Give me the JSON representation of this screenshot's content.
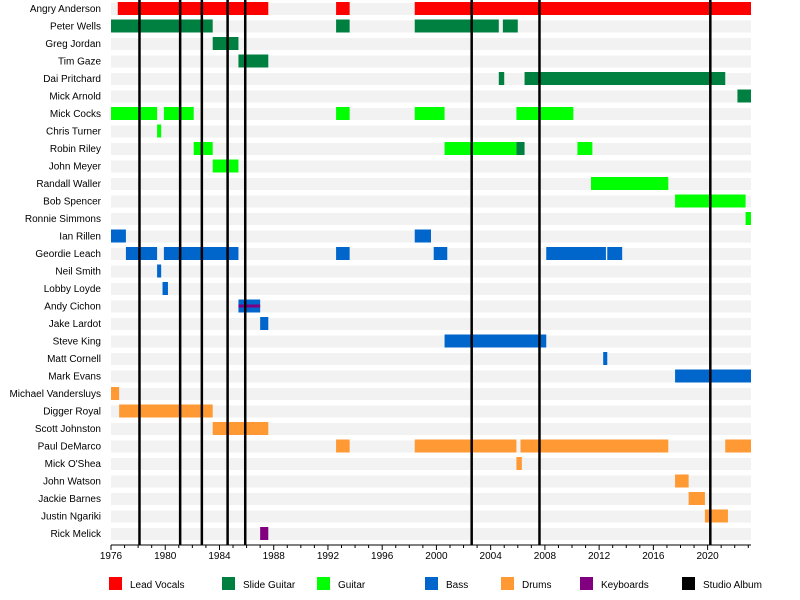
{
  "chart_data": {
    "type": "timeline",
    "x_range": [
      1976,
      2023.2
    ],
    "x_ticks": [
      1976,
      1980,
      1984,
      1988,
      1992,
      1996,
      2000,
      2004,
      2008,
      2012,
      2016,
      2020
    ],
    "members": [
      "Angry Anderson",
      "Peter Wells",
      "Greg Jordan",
      "Tim Gaze",
      "Dai Pritchard",
      "Mick Arnold",
      "Mick Cocks",
      "Chris Turner",
      "Robin Riley",
      "John Meyer",
      "Randall Waller",
      "Bob Spencer",
      "Ronnie Simmons",
      "Ian Rillen",
      "Geordie Leach",
      "Neil Smith",
      "Lobby Loyde",
      "Andy Cichon",
      "Jake Lardot",
      "Steve King",
      "Matt Cornell",
      "Mark Evans",
      "Michael Vandersluys",
      "Digger Royal",
      "Scott Johnston",
      "Paul DeMarco",
      "Mick O'Shea",
      "John Watson",
      "Jackie Barnes",
      "Justin Ngariki",
      "Rick Melick"
    ],
    "roles": [
      {
        "key": "lead_vocals",
        "label": "Lead Vocals",
        "color": "#ff0000"
      },
      {
        "key": "slide_guitar",
        "label": "Slide Guitar",
        "color": "#008040"
      },
      {
        "key": "guitar",
        "label": "Guitar",
        "color": "#00ff00"
      },
      {
        "key": "bass",
        "label": "Bass",
        "color": "#0066cc"
      },
      {
        "key": "drums",
        "label": "Drums",
        "color": "#ff9933"
      },
      {
        "key": "keyboards",
        "label": "Keyboards",
        "color": "#800080"
      },
      {
        "key": "studio_album",
        "label": "Studio Album",
        "color": "#000000"
      }
    ],
    "albums": [
      1978.1,
      1981.1,
      1982.7,
      1984.6,
      1985.9,
      2002.6,
      2007.6,
      2020.2
    ],
    "bars": [
      {
        "member": "Angry Anderson",
        "role": "lead_vocals",
        "start": 1976.5,
        "end": 1987.6
      },
      {
        "member": "Angry Anderson",
        "role": "lead_vocals",
        "start": 1992.6,
        "end": 1993.6
      },
      {
        "member": "Angry Anderson",
        "role": "lead_vocals",
        "start": 1998.4,
        "end": 2023.2
      },
      {
        "member": "Peter Wells",
        "role": "slide_guitar",
        "start": 1976.0,
        "end": 1983.5
      },
      {
        "member": "Peter Wells",
        "role": "slide_guitar",
        "start": 1992.6,
        "end": 1993.6
      },
      {
        "member": "Peter Wells",
        "role": "slide_guitar",
        "start": 1998.4,
        "end": 2004.6
      },
      {
        "member": "Peter Wells",
        "role": "slide_guitar",
        "start": 2004.9,
        "end": 2006.0
      },
      {
        "member": "Greg Jordan",
        "role": "slide_guitar",
        "start": 1983.5,
        "end": 1985.4
      },
      {
        "member": "Tim Gaze",
        "role": "slide_guitar",
        "start": 1985.4,
        "end": 1987.6
      },
      {
        "member": "Dai Pritchard",
        "role": "slide_guitar",
        "start": 2004.6,
        "end": 2005.0
      },
      {
        "member": "Dai Pritchard",
        "role": "slide_guitar",
        "start": 2006.5,
        "end": 2021.3
      },
      {
        "member": "Mick Arnold",
        "role": "slide_guitar",
        "start": 2022.2,
        "end": 2023.2
      },
      {
        "member": "Mick Cocks",
        "role": "guitar",
        "start": 1976.0,
        "end": 1979.4
      },
      {
        "member": "Mick Cocks",
        "role": "guitar",
        "start": 1979.9,
        "end": 1982.1
      },
      {
        "member": "Mick Cocks",
        "role": "guitar",
        "start": 1992.6,
        "end": 1993.6
      },
      {
        "member": "Mick Cocks",
        "role": "guitar",
        "start": 1998.4,
        "end": 2000.6
      },
      {
        "member": "Mick Cocks",
        "role": "guitar",
        "start": 2005.9,
        "end": 2010.1
      },
      {
        "member": "Chris Turner",
        "role": "guitar",
        "start": 1979.4,
        "end": 1979.7
      },
      {
        "member": "Robin Riley",
        "role": "guitar",
        "start": 1982.1,
        "end": 1983.5
      },
      {
        "member": "Robin Riley",
        "role": "guitar",
        "start": 2000.6,
        "end": 2005.9
      },
      {
        "member": "Robin Riley",
        "role": "slide_guitar",
        "start": 2005.9,
        "end": 2006.5
      },
      {
        "member": "Robin Riley",
        "role": "guitar",
        "start": 2010.4,
        "end": 2011.5
      },
      {
        "member": "John Meyer",
        "role": "guitar",
        "start": 1983.5,
        "end": 1985.4
      },
      {
        "member": "Randall Waller",
        "role": "guitar",
        "start": 2011.4,
        "end": 2017.1
      },
      {
        "member": "Bob Spencer",
        "role": "guitar",
        "start": 2017.6,
        "end": 2022.8
      },
      {
        "member": "Ronnie Simmons",
        "role": "guitar",
        "start": 2022.8,
        "end": 2023.2
      },
      {
        "member": "Ian Rillen",
        "role": "bass",
        "start": 1976.0,
        "end": 1977.1
      },
      {
        "member": "Ian Rillen",
        "role": "bass",
        "start": 1998.4,
        "end": 1999.6
      },
      {
        "member": "Geordie Leach",
        "role": "bass",
        "start": 1977.1,
        "end": 1979.4
      },
      {
        "member": "Geordie Leach",
        "role": "bass",
        "start": 1979.9,
        "end": 1985.4
      },
      {
        "member": "Geordie Leach",
        "role": "bass",
        "start": 1992.6,
        "end": 1993.6
      },
      {
        "member": "Geordie Leach",
        "role": "bass",
        "start": 1999.8,
        "end": 2000.8
      },
      {
        "member": "Geordie Leach",
        "role": "bass",
        "start": 2008.1,
        "end": 2012.5
      },
      {
        "member": "Geordie Leach",
        "role": "bass",
        "start": 2012.6,
        "end": 2013.7
      },
      {
        "member": "Neil Smith",
        "role": "bass",
        "start": 1979.4,
        "end": 1979.7
      },
      {
        "member": "Lobby Loyde",
        "role": "bass",
        "start": 1979.8,
        "end": 1980.2
      },
      {
        "member": "Andy Cichon",
        "role": "bass",
        "start": 1985.4,
        "end": 1987.0
      },
      {
        "member": "Andy Cichon",
        "role": "keyboards",
        "start": 1985.4,
        "end": 1987.0,
        "stripe": true
      },
      {
        "member": "Jake Lardot",
        "role": "bass",
        "start": 1987.0,
        "end": 1987.6
      },
      {
        "member": "Steve King",
        "role": "bass",
        "start": 2000.6,
        "end": 2008.1
      },
      {
        "member": "Matt Cornell",
        "role": "bass",
        "start": 2012.3,
        "end": 2012.6
      },
      {
        "member": "Mark Evans",
        "role": "bass",
        "start": 2017.6,
        "end": 2023.2
      },
      {
        "member": "Michael Vandersluys",
        "role": "drums",
        "start": 1976.0,
        "end": 1976.6
      },
      {
        "member": "Digger Royal",
        "role": "drums",
        "start": 1976.6,
        "end": 1983.5
      },
      {
        "member": "Scott Johnston",
        "role": "drums",
        "start": 1983.5,
        "end": 1987.6
      },
      {
        "member": "Paul DeMarco",
        "role": "drums",
        "start": 1992.6,
        "end": 1993.6
      },
      {
        "member": "Paul DeMarco",
        "role": "drums",
        "start": 1998.4,
        "end": 2005.9
      },
      {
        "member": "Paul DeMarco",
        "role": "drums",
        "start": 2006.2,
        "end": 2017.1
      },
      {
        "member": "Paul DeMarco",
        "role": "drums",
        "start": 2021.3,
        "end": 2023.2
      },
      {
        "member": "Mick O'Shea",
        "role": "drums",
        "start": 2005.9,
        "end": 2006.3
      },
      {
        "member": "John Watson",
        "role": "drums",
        "start": 2017.6,
        "end": 2018.6
      },
      {
        "member": "Jackie Barnes",
        "role": "drums",
        "start": 2018.6,
        "end": 2019.8
      },
      {
        "member": "Justin Ngariki",
        "role": "drums",
        "start": 2019.8,
        "end": 2021.5
      },
      {
        "member": "Rick Melick",
        "role": "keyboards",
        "start": 1987.0,
        "end": 1987.6
      }
    ]
  }
}
